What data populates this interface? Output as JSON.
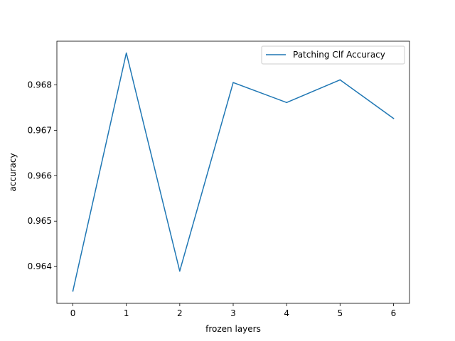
{
  "chart_data": {
    "type": "line",
    "title": "",
    "xlabel": "frozen layers",
    "ylabel": "accuracy",
    "x": [
      0,
      1,
      2,
      3,
      4,
      5,
      6
    ],
    "series": [
      {
        "name": "Patching Clf Accuracy",
        "color": "#1f77b4",
        "values": [
          0.96346,
          0.9687,
          0.9639,
          0.96805,
          0.96761,
          0.96811,
          0.96726
        ]
      }
    ],
    "xlim": [
      -0.3,
      6.3
    ],
    "ylim": [
      0.96319,
      0.96896
    ],
    "xticks": [
      0,
      1,
      2,
      3,
      4,
      5,
      6
    ],
    "xtick_labels": [
      "0",
      "1",
      "2",
      "3",
      "4",
      "5",
      "6"
    ],
    "yticks": [
      0.964,
      0.965,
      0.966,
      0.967,
      0.968
    ],
    "ytick_labels": [
      "0.964",
      "0.965",
      "0.966",
      "0.967",
      "0.968"
    ],
    "grid": false,
    "legend_position": "top-right"
  }
}
